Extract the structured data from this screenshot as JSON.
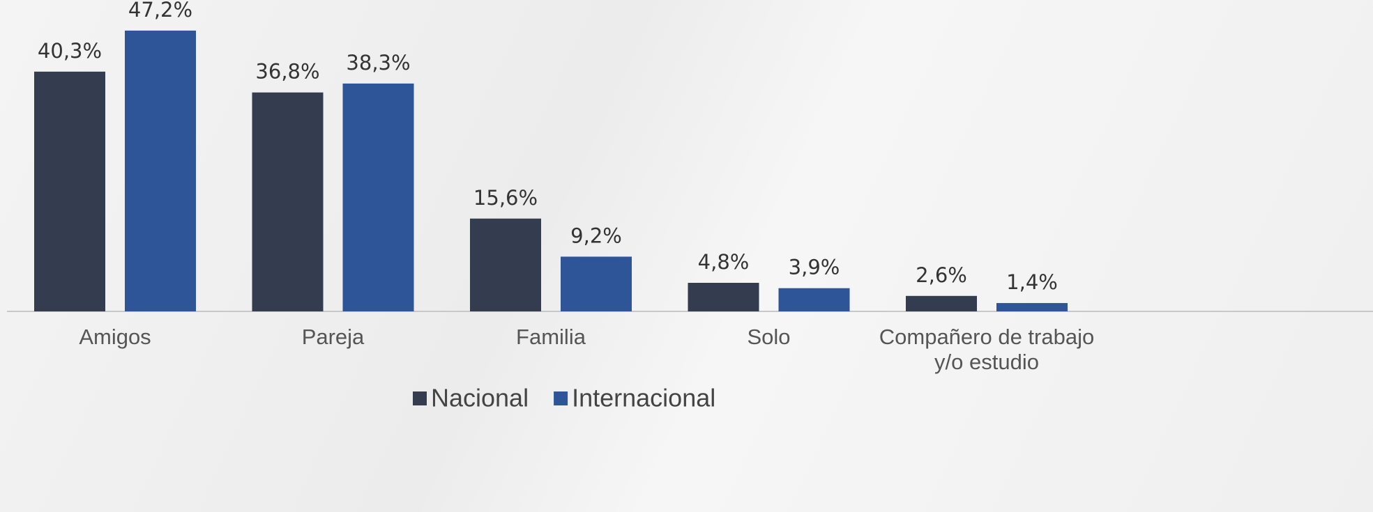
{
  "chart_data": {
    "type": "bar",
    "categories": [
      "Amigos",
      "Pareja",
      "Familia",
      "Solo",
      "Compañero de trabajo y/o estudio"
    ],
    "series": [
      {
        "name": "Nacional",
        "color": "#333d4f",
        "values": [
          40.3,
          36.8,
          15.6,
          4.8,
          2.6
        ],
        "value_labels": [
          "40,3%",
          "36,8%",
          "15,6%",
          "4,8%",
          "2,6%"
        ]
      },
      {
        "name": "Internacional",
        "color": "#2e5597",
        "values": [
          47.2,
          38.3,
          9.2,
          3.9,
          1.4
        ],
        "value_labels": [
          "47,2%",
          "38,3%",
          "9,2%",
          "3,9%",
          "1,4%"
        ]
      }
    ],
    "legend": "bottom"
  }
}
